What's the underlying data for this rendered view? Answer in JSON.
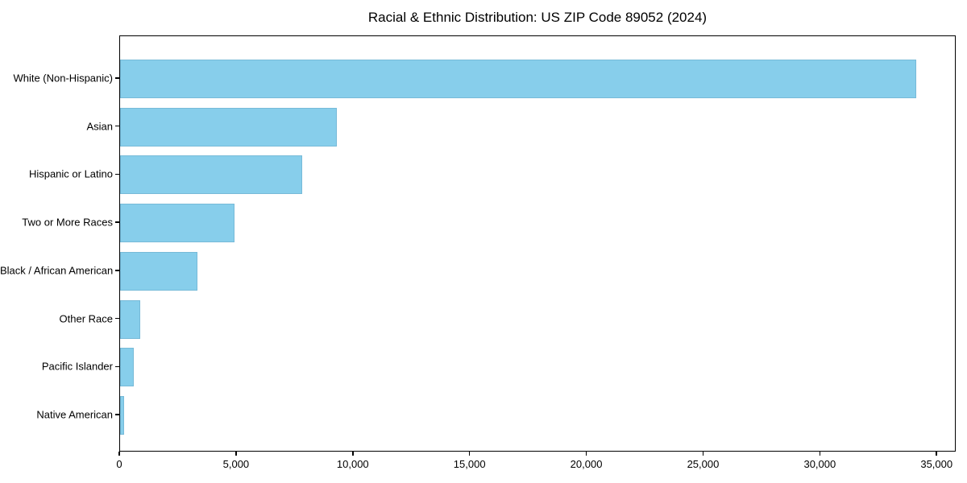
{
  "chart_data": {
    "type": "bar",
    "orientation": "horizontal",
    "title": "Racial & Ethnic Distribution: US ZIP Code 89052 (2024)",
    "categories": [
      "White (Non-Hispanic)",
      "Asian",
      "Hispanic or Latino",
      "Two or More Races",
      "Black / African American",
      "Other Race",
      "Pacific Islander",
      "Native American"
    ],
    "values": [
      34100,
      9290,
      7790,
      4890,
      3300,
      870,
      590,
      170
    ],
    "xlabel": "",
    "ylabel": "",
    "xlim": [
      0,
      35820
    ],
    "x_ticks": [
      0,
      5000,
      10000,
      15000,
      20000,
      25000,
      30000,
      35000
    ],
    "x_tick_labels": [
      "0",
      "5,000",
      "10,000",
      "15,000",
      "20,000",
      "25,000",
      "30,000",
      "35,000"
    ],
    "grid": false,
    "legend_position": "none",
    "bar_color": "#87CEEB",
    "background_color": "#ffffff",
    "spine_color": "#000000"
  }
}
